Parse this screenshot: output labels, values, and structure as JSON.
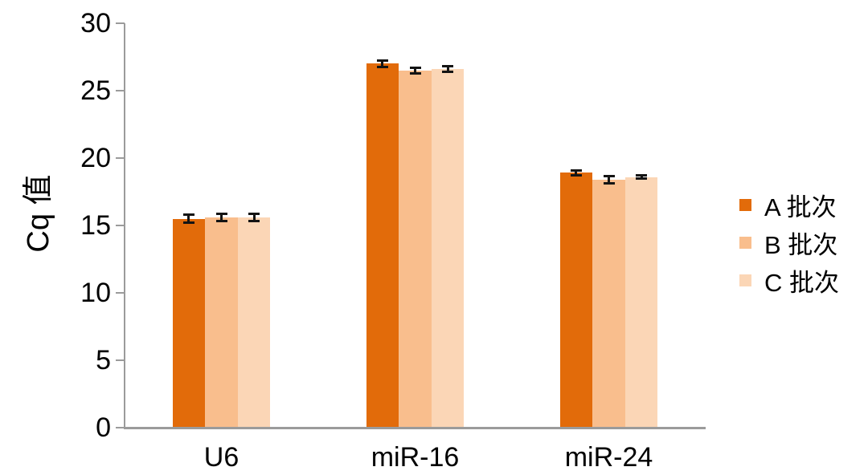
{
  "chart_data": {
    "type": "bar",
    "title": "",
    "ylabel": "Cq 值",
    "xlabel": "",
    "categories": [
      "U6",
      "miR-16",
      "miR-24"
    ],
    "series": [
      {
        "name": "A 批次",
        "color": "#E26B0A",
        "values": [
          15.5,
          27.0,
          18.9
        ],
        "errors": [
          0.3,
          0.25,
          0.2
        ]
      },
      {
        "name": "B 批次",
        "color": "#F9BE8D",
        "values": [
          15.6,
          26.5,
          18.4
        ],
        "errors": [
          0.25,
          0.2,
          0.25
        ]
      },
      {
        "name": "C 批次",
        "color": "#FBD6B6",
        "values": [
          15.6,
          26.6,
          18.6
        ],
        "errors": [
          0.25,
          0.2,
          0.1
        ]
      }
    ],
    "ylim": [
      0,
      30
    ],
    "yticks": [
      0,
      5,
      10,
      15,
      20,
      25,
      30
    ],
    "grid": false,
    "legend_position": "right",
    "axis_color": "#9b9b9b",
    "error_bar_color": "#141414",
    "text_color": "#000000",
    "background_color": "#ffffff"
  }
}
